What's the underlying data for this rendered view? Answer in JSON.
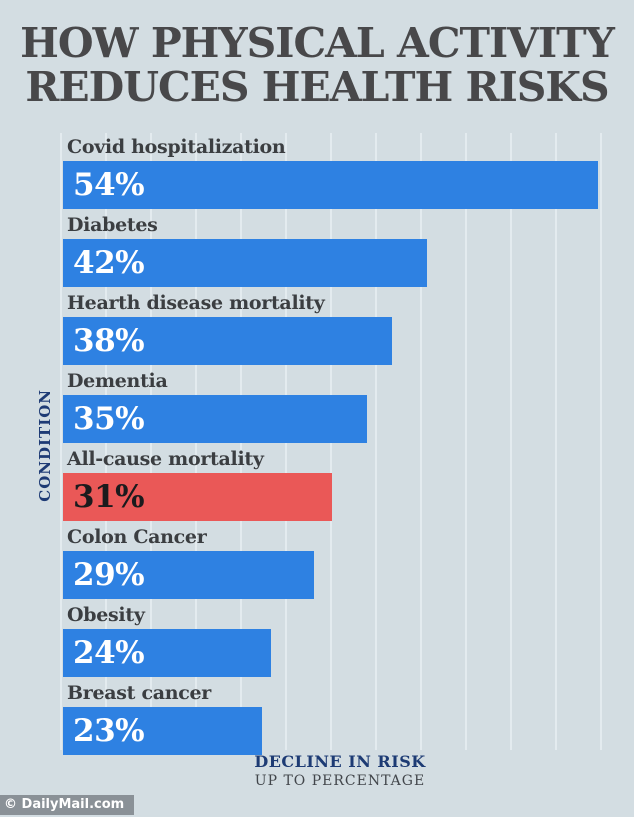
{
  "title": {
    "line1": "HOW PHYSICAL ACTIVITY",
    "line2": "REDUCES HEALTH RISKS"
  },
  "chart_data": {
    "type": "bar",
    "orientation": "horizontal",
    "title": "HOW PHYSICAL ACTIVITY REDUCES HEALTH RISKS",
    "categories": [
      "Covid hospitalization",
      "Diabetes",
      "Hearth disease mortality",
      "Dementia",
      "All-cause mortality",
      "Colon Cancer",
      "Obesity",
      "Breast cancer"
    ],
    "values": [
      54,
      42,
      38,
      35,
      31,
      29,
      24,
      23
    ],
    "value_labels": [
      "54%",
      "42%",
      "38%",
      "35%",
      "31%",
      "29%",
      "24%",
      "23%"
    ],
    "ylabel": "CONDITION",
    "xlabel": "DECLINE IN RISK",
    "xlabel_sub": "UP TO PERCENTAGE",
    "grid": "vertical gridlines, no tick labels",
    "legend": "none",
    "highlight_note": "All-cause mortality bar is red; all others blue; top bar drawn longer than proportional scale",
    "colors": {
      "bar_blue": "#2e81e2",
      "bar_red": "#ea5857",
      "background": "#d3dde2",
      "gridline": "#e3ebef",
      "title_text": "#48484a",
      "category_text": "#3b3e41",
      "axis_navy": "#1e3b75"
    },
    "bars": [
      {
        "category": "Covid hospitalization",
        "value": 54,
        "label": "54%",
        "color": "#2e81e2",
        "text_color": "#ffffff",
        "drawn_pct": 95.5
      },
      {
        "category": "Diabetes",
        "value": 42,
        "label": "42%",
        "color": "#2e81e2",
        "text_color": "#ffffff",
        "drawn_pct": 65.0
      },
      {
        "category": "Hearth disease mortality",
        "value": 38,
        "label": "38%",
        "color": "#2e81e2",
        "text_color": "#ffffff",
        "drawn_pct": 58.8
      },
      {
        "category": "Dementia",
        "value": 35,
        "label": "35%",
        "color": "#2e81e2",
        "text_color": "#ffffff",
        "drawn_pct": 54.2
      },
      {
        "category": "All-cause mortality",
        "value": 31,
        "label": "31%",
        "color": "#ea5857",
        "text_color": "#1b1b1d",
        "drawn_pct": 48.0
      },
      {
        "category": "Colon Cancer",
        "value": 29,
        "label": "29%",
        "color": "#2e81e2",
        "text_color": "#ffffff",
        "drawn_pct": 44.8
      },
      {
        "category": "Obesity",
        "value": 24,
        "label": "24%",
        "color": "#2e81e2",
        "text_color": "#ffffff",
        "drawn_pct": 37.2
      },
      {
        "category": "Breast cancer",
        "value": 23,
        "label": "23%",
        "color": "#2e81e2",
        "text_color": "#ffffff",
        "drawn_pct": 35.6
      }
    ]
  },
  "axes": {
    "ylabel": "CONDITION",
    "xlabel": "DECLINE IN RISK",
    "xlabel_sub": "UP TO PERCENTAGE"
  },
  "footer": {
    "credit": "© DailyMail.com"
  }
}
